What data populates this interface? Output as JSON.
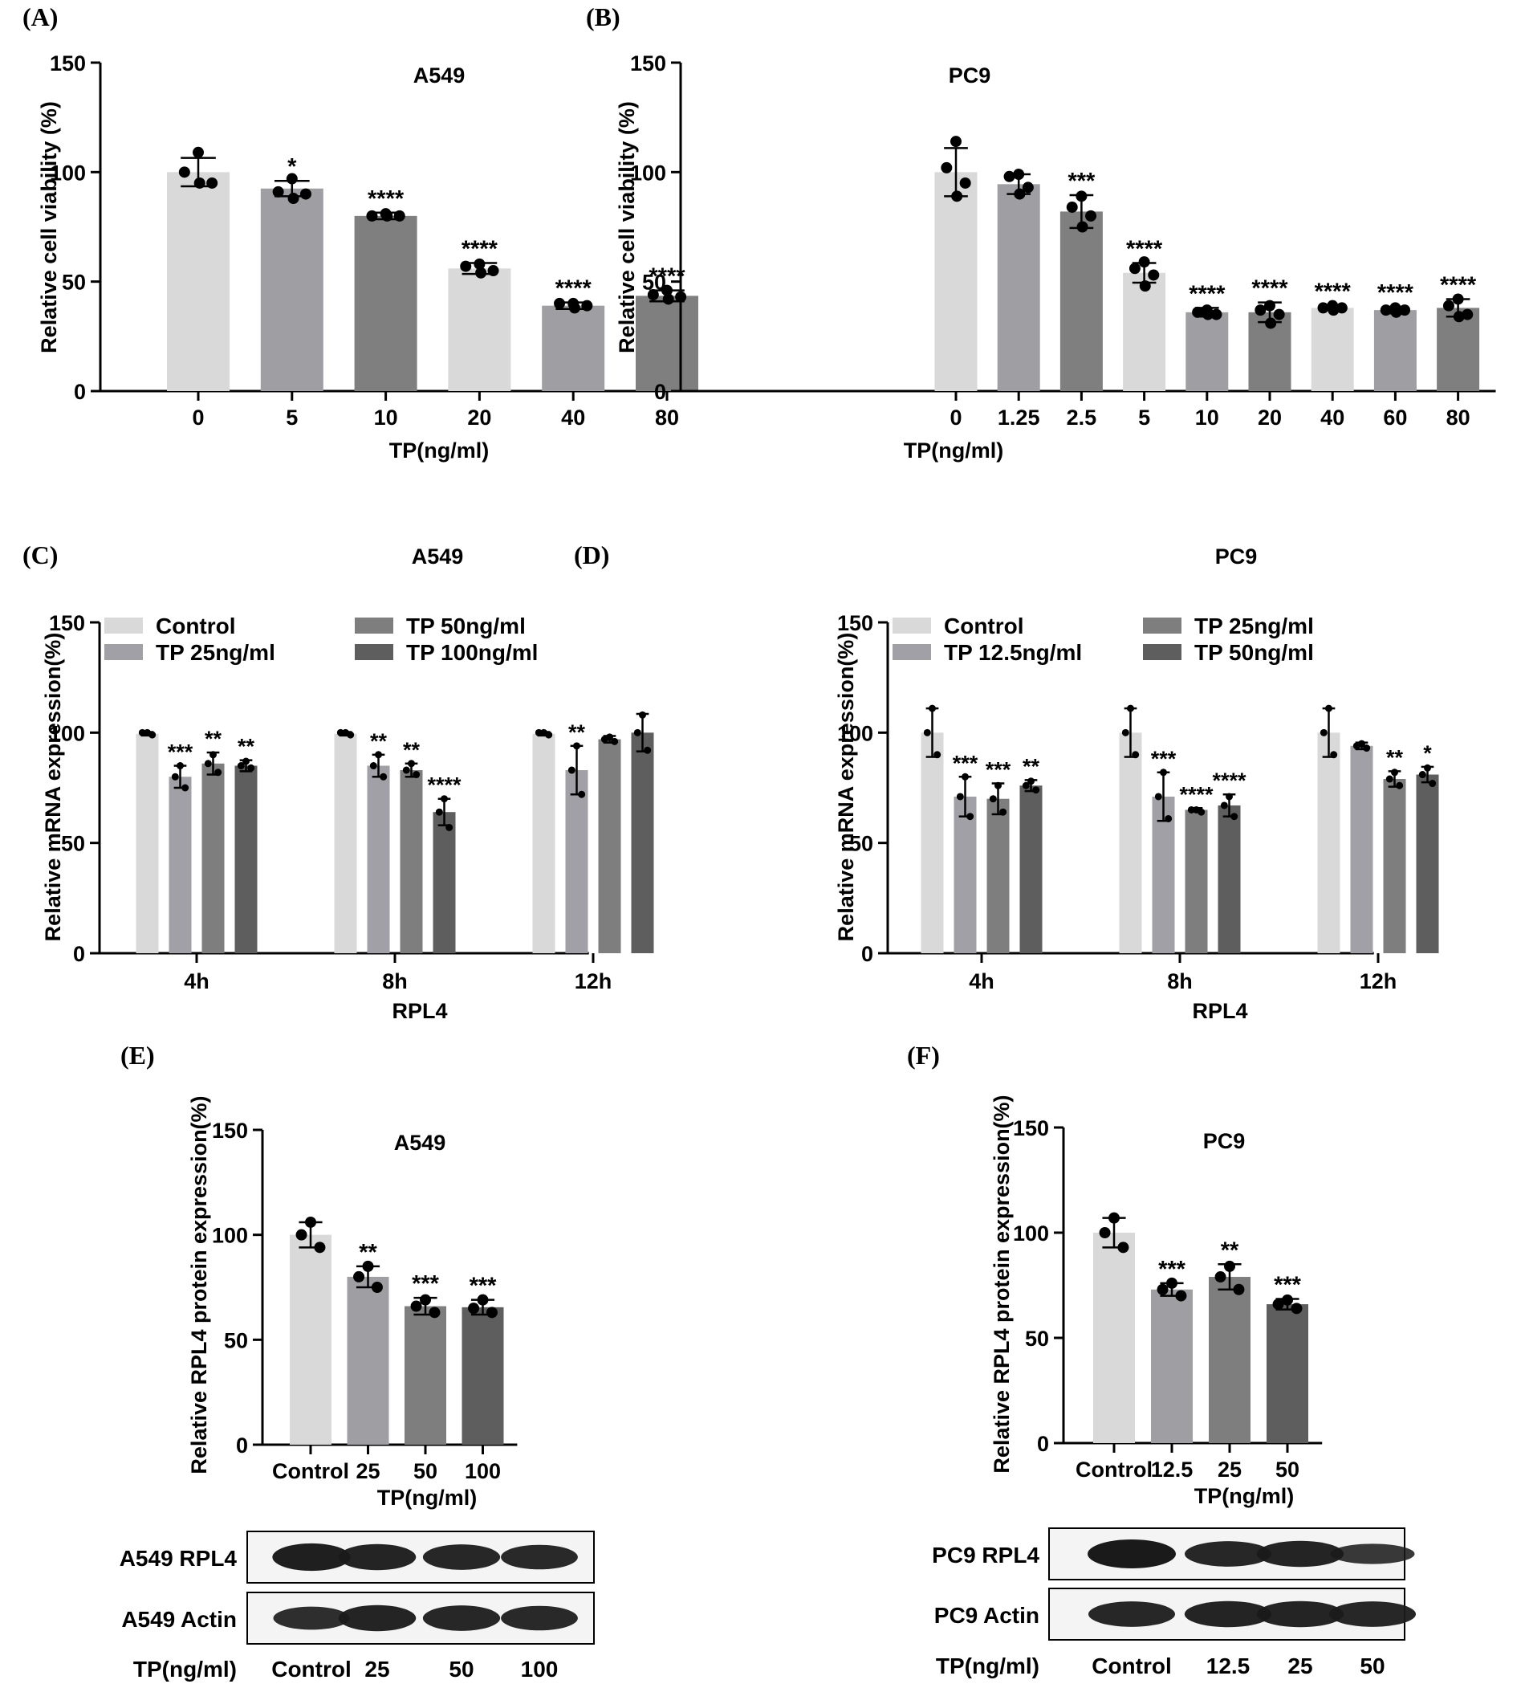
{
  "chart_data": [
    {
      "panel": "(A)",
      "type": "bar",
      "title": "A549",
      "xlabel": "TP(ng/ml)",
      "ylabel": "Relative cell viability (%)",
      "ylim": [
        0,
        150
      ],
      "yticks": [
        0,
        50,
        100,
        150
      ],
      "categories": [
        "0",
        "5",
        "10",
        "20",
        "40",
        "80"
      ],
      "values": [
        100,
        92.5,
        80,
        56,
        39,
        43.5
      ],
      "errors": [
        6.5,
        3.5,
        1.5,
        2.5,
        1.5,
        2.5
      ],
      "points": [
        [
          109,
          100,
          95,
          95
        ],
        [
          97,
          91,
          90,
          88
        ],
        [
          81,
          80,
          80,
          80
        ],
        [
          58,
          57,
          55,
          54
        ],
        [
          40,
          40,
          39,
          38
        ],
        [
          46,
          44,
          43,
          42
        ]
      ],
      "colors": [
        "#d9d9d9",
        "#9f9fa3",
        "#7f7f7f",
        "#d9d9d9",
        "#9f9fa3",
        "#7f7f7f"
      ],
      "annotations": [
        "",
        "*",
        "****",
        "****",
        "****",
        "****"
      ]
    },
    {
      "panel": "(B)",
      "type": "bar",
      "title": "PC9",
      "xlabel": "TP(ng/ml)",
      "ylabel": "Relative cell viability (%)",
      "ylim": [
        0,
        150
      ],
      "yticks": [
        0,
        50,
        100,
        150
      ],
      "categories": [
        "0",
        "1.25",
        "2.5",
        "5",
        "10",
        "20",
        "40",
        "60",
        "80"
      ],
      "values": [
        100,
        94.5,
        82,
        54,
        36,
        36,
        38,
        37,
        38
      ],
      "errors": [
        11,
        4.5,
        7.5,
        4.5,
        2,
        4.5,
        1,
        1.5,
        4
      ],
      "points": [
        [
          114,
          102,
          95,
          89
        ],
        [
          99,
          98,
          93,
          90
        ],
        [
          89,
          84,
          80,
          75
        ],
        [
          59,
          56,
          53,
          48
        ],
        [
          37,
          36,
          35,
          35
        ],
        [
          39,
          37,
          35,
          31
        ],
        [
          39,
          38,
          38,
          37
        ],
        [
          38,
          37,
          37,
          36
        ],
        [
          42,
          39,
          35,
          34
        ]
      ],
      "colors": [
        "#d9d9d9",
        "#9f9fa3",
        "#7f7f7f",
        "#d9d9d9",
        "#9f9fa3",
        "#7f7f7f",
        "#d9d9d9",
        "#9f9fa3",
        "#7f7f7f"
      ],
      "annotations": [
        "",
        "",
        "***",
        "****",
        "****",
        "****",
        "****",
        "****",
        "****"
      ]
    },
    {
      "panel": "(C)",
      "type": "bar",
      "title": "A549",
      "xlabel": "RPL4",
      "ylabel": "Relative mRNA expression(%)",
      "ylim": [
        0,
        150
      ],
      "yticks": [
        0,
        50,
        100,
        150
      ],
      "categories": [
        "4h",
        "8h",
        "12h"
      ],
      "series": [
        {
          "name": "Control",
          "color": "#d9d9d9",
          "values": [
            99.5,
            99.5,
            99.5
          ],
          "errors": [
            0.8,
            0.8,
            0.8
          ],
          "points": [
            [
              100,
              100,
              99
            ],
            [
              100,
              100,
              99
            ],
            [
              100,
              100,
              99
            ]
          ],
          "annotations": [
            "",
            "",
            ""
          ]
        },
        {
          "name": "TP 25ng/ml",
          "color": "#a0a0a6",
          "values": [
            80,
            85,
            83
          ],
          "errors": [
            5,
            5,
            11
          ],
          "points": [
            [
              85,
              80,
              75
            ],
            [
              90,
              85,
              80
            ],
            [
              94,
              83,
              72
            ]
          ],
          "annotations": [
            "***",
            "**",
            "**"
          ]
        },
        {
          "name": "TP 50ng/ml",
          "color": "#7e7e7e",
          "values": [
            86,
            83,
            97
          ],
          "errors": [
            5,
            3,
            1.5
          ],
          "points": [
            [
              90,
              86,
              82
            ],
            [
              86,
              83,
              81
            ],
            [
              98,
              97,
              96
            ]
          ],
          "annotations": [
            "**",
            "**",
            ""
          ]
        },
        {
          "name": "TP 100ng/ml",
          "color": "#5e5e5e",
          "values": [
            85,
            64,
            100
          ],
          "errors": [
            2.5,
            6,
            8.5
          ],
          "points": [
            [
              87,
              85,
              84
            ],
            [
              70,
              64,
              57
            ],
            [
              108,
              100,
              92
            ]
          ],
          "annotations": [
            "**",
            "****",
            ""
          ]
        }
      ]
    },
    {
      "panel": "(D)",
      "type": "bar",
      "title": "PC9",
      "xlabel": "RPL4",
      "ylabel": "Relative mRNA expression(%)",
      "ylim": [
        0,
        150
      ],
      "yticks": [
        0,
        50,
        100,
        150
      ],
      "categories": [
        "4h",
        "8h",
        "12h"
      ],
      "series": [
        {
          "name": "Control",
          "color": "#d9d9d9",
          "values": [
            100,
            100,
            100
          ],
          "errors": [
            11,
            11,
            11
          ],
          "points": [
            [
              111,
              100,
              90
            ],
            [
              111,
              100,
              90
            ],
            [
              111,
              100,
              90
            ]
          ],
          "annotations": [
            "",
            "",
            ""
          ]
        },
        {
          "name": "TP 12.5ng/ml",
          "color": "#a0a0a6",
          "values": [
            71,
            71,
            94
          ],
          "errors": [
            9,
            11,
            1.5
          ],
          "points": [
            [
              80,
              71,
              62
            ],
            [
              82,
              71,
              61
            ],
            [
              95,
              94,
              93
            ]
          ],
          "annotations": [
            "***",
            "***",
            ""
          ]
        },
        {
          "name": "TP 25ng/ml",
          "color": "#7e7e7e",
          "values": [
            70,
            65,
            79
          ],
          "errors": [
            7,
            0.8,
            3.5
          ],
          "points": [
            [
              76,
              70,
              64
            ],
            [
              65,
              65,
              64
            ],
            [
              82,
              79,
              76
            ]
          ],
          "annotations": [
            "***",
            "****",
            "**"
          ]
        },
        {
          "name": "TP 50ng/ml",
          "color": "#5e5e5e",
          "values": [
            76,
            67,
            81
          ],
          "errors": [
            2.5,
            5,
            3.5
          ],
          "points": [
            [
              78,
              76,
              74
            ],
            [
              71,
              67,
              62
            ],
            [
              84,
              81,
              77
            ]
          ],
          "annotations": [
            "**",
            "****",
            "*"
          ]
        }
      ]
    },
    {
      "panel": "(E)",
      "type": "bar",
      "title": "A549",
      "xlabel": "TP(ng/ml)",
      "ylabel": "Relative RPL4 protein expression(%)",
      "ylim": [
        0,
        150
      ],
      "yticks": [
        0,
        50,
        100,
        150
      ],
      "categories": [
        "Control",
        "25",
        "50",
        "100"
      ],
      "values": [
        100,
        80,
        66,
        65.5
      ],
      "errors": [
        6,
        5,
        4,
        3.5
      ],
      "points": [
        [
          106,
          100,
          94
        ],
        [
          85,
          80,
          75
        ],
        [
          69,
          66,
          63
        ],
        [
          69,
          65,
          63
        ]
      ],
      "colors": [
        "#d9d9d9",
        "#9f9fa3",
        "#7e7e7e",
        "#5e5e5e"
      ],
      "annotations": [
        "",
        "**",
        "***",
        "***"
      ]
    },
    {
      "panel": "(F)",
      "type": "bar",
      "title": "PC9",
      "xlabel": "TP(ng/ml)",
      "ylabel": "Relative RPL4 protein expression(%)",
      "ylim": [
        0,
        150
      ],
      "yticks": [
        0,
        50,
        100,
        150
      ],
      "categories": [
        "Control",
        "12.5",
        "25",
        "50"
      ],
      "values": [
        100,
        73,
        79,
        66
      ],
      "errors": [
        7,
        3,
        6,
        2.5
      ],
      "points": [
        [
          107,
          100,
          93
        ],
        [
          76,
          73,
          70
        ],
        [
          84,
          79,
          73
        ],
        [
          68,
          66,
          64
        ]
      ],
      "colors": [
        "#d9d9d9",
        "#9f9fa3",
        "#7e7e7e",
        "#5e5e5e"
      ],
      "annotations": [
        "",
        "***",
        "**",
        "***"
      ]
    }
  ],
  "blots": {
    "E": {
      "rpl4_label": "A549 RPL4",
      "actin_label": "A549 Actin",
      "lane_title": "TP(ng/ml)",
      "lanes": [
        "Control",
        "25",
        "50",
        "100"
      ]
    },
    "F": {
      "rpl4_label": "PC9 RPL4",
      "actin_label": "PC9 Actin",
      "lane_title": "TP(ng/ml)",
      "lanes": [
        "Control",
        "12.5",
        "25",
        "50"
      ]
    }
  }
}
